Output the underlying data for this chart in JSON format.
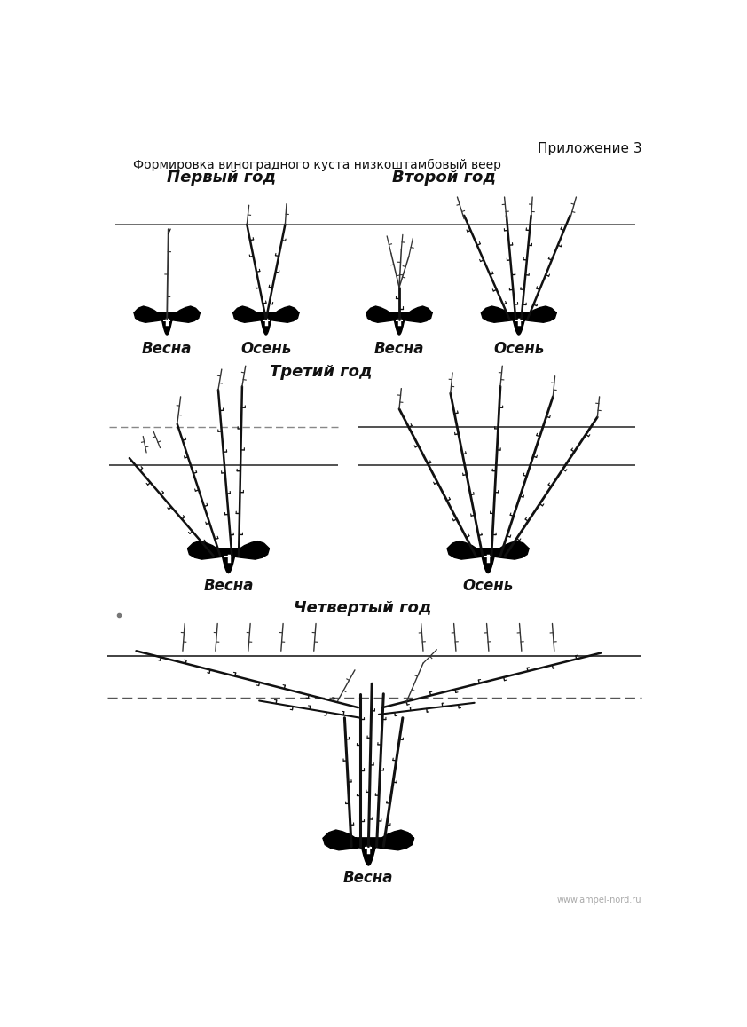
{
  "title_appendix": "Приложение 3",
  "title_main": "Формировка виноградного куста низкоштамбовый веер",
  "year1_label": "Первый год",
  "year2_label": "Второй год",
  "year3_label": "Третий год",
  "year4_label": "Четвертый год",
  "spring_label": "Весна",
  "autumn_label": "Осень",
  "website": "www.ampel-nord.ru",
  "bg_color": "#ffffff",
  "line_color": "#111111",
  "text_color": "#111111",
  "fig_width": 8.42,
  "fig_height": 11.57,
  "dpi": 100
}
